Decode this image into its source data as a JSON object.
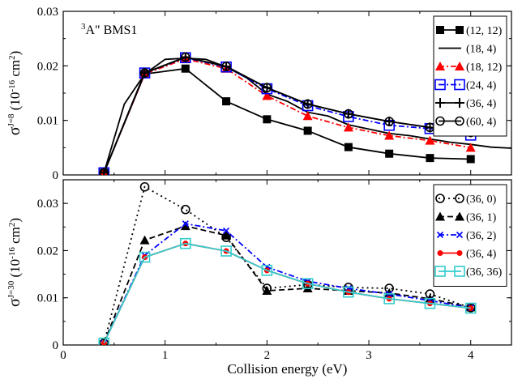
{
  "chart_data": [
    {
      "type": "line",
      "title": "",
      "annotation": "3A\" BMS1",
      "annotation_sup": "3",
      "annotation_main": "A\" BMS1",
      "xlabel": "",
      "ylabel_sym": "σ",
      "ylabel_sup": "J=8",
      "ylabel_unit_pre": " (10",
      "ylabel_unit_exp": "-16",
      "ylabel_unit_mid": " cm",
      "ylabel_unit_sq": "2",
      "ylabel_unit_post": ")",
      "ylim": [
        0,
        0.03
      ],
      "xlim": [
        0,
        4.4
      ],
      "yticks": [
        0,
        0.01,
        0.02,
        0.03
      ],
      "yticklabels": [
        "0",
        "0.01",
        "0.02",
        "0.03"
      ],
      "legend_position": "top-right",
      "series": [
        {
          "name": "(12, 12)",
          "color": "#000000",
          "marker": "square-filled",
          "dash": "solid",
          "x": [
            0.4,
            0.8,
            1.2,
            1.6,
            2.0,
            2.4,
            2.8,
            3.2,
            3.6,
            4.0
          ],
          "y": [
            0.0004,
            0.0185,
            0.0195,
            0.0135,
            0.0102,
            0.0081,
            0.0051,
            0.0039,
            0.0031,
            0.0029
          ]
        },
        {
          "name": "(18, 4)",
          "color": "#000000",
          "marker": "none",
          "dash": "solid",
          "x": [
            0.4,
            0.6,
            0.8,
            1.0,
            1.2,
            1.4,
            1.6,
            1.8,
            2.0,
            2.2,
            2.4,
            2.6,
            2.8,
            3.0,
            3.2,
            3.4,
            3.6,
            3.8,
            4.0,
            4.2,
            4.4
          ],
          "y": [
            0.0004,
            0.013,
            0.0185,
            0.0212,
            0.0214,
            0.0212,
            0.0198,
            0.0178,
            0.0148,
            0.0135,
            0.0115,
            0.0108,
            0.0092,
            0.0084,
            0.0076,
            0.0072,
            0.0066,
            0.006,
            0.0056,
            0.0051,
            0.0049
          ]
        },
        {
          "name": "(18, 12)",
          "color": "#ff0000",
          "marker": "triangle-filled",
          "dash": "dashdot",
          "x": [
            0.4,
            0.8,
            1.2,
            1.6,
            2.0,
            2.4,
            2.8,
            3.2,
            3.6,
            4.0
          ],
          "y": [
            0.0004,
            0.0185,
            0.0213,
            0.0195,
            0.0145,
            0.0108,
            0.0087,
            0.0072,
            0.0063,
            0.005
          ]
        },
        {
          "name": "(24, 4)",
          "color": "#0000ff",
          "marker": "square-open",
          "dash": "dashdot",
          "x": [
            0.4,
            0.8,
            1.2,
            1.6,
            2.0,
            2.4,
            2.8,
            3.2,
            3.6,
            4.0
          ],
          "y": [
            0.0004,
            0.0187,
            0.0215,
            0.0198,
            0.0158,
            0.0127,
            0.0107,
            0.0091,
            0.0085,
            0.0073
          ]
        },
        {
          "name": "(36, 4)",
          "color": "#000000",
          "marker": "plus",
          "dash": "solid",
          "x": [
            0.4,
            0.8,
            1.2,
            1.6,
            2.0,
            2.4,
            2.8,
            3.2,
            3.6,
            4.0
          ],
          "y": [
            0.0004,
            0.0187,
            0.0216,
            0.0199,
            0.016,
            0.013,
            0.0112,
            0.0098,
            0.0087,
            0.0078
          ]
        },
        {
          "name": "(60, 4)",
          "color": "#000000",
          "marker": "circle-open",
          "dash": "solid",
          "x": [
            0.4,
            0.8,
            1.2,
            1.6,
            2.0,
            2.4,
            2.8,
            3.2,
            3.6,
            4.0
          ],
          "y": [
            0.0004,
            0.0187,
            0.0216,
            0.0199,
            0.016,
            0.013,
            0.0112,
            0.0098,
            0.0087,
            0.0078
          ]
        }
      ]
    },
    {
      "type": "line",
      "title": "",
      "xlabel": "Collision energy (eV)",
      "ylabel_sym": "σ",
      "ylabel_sup": "J=30",
      "ylabel_unit_pre": " (10",
      "ylabel_unit_exp": "-16",
      "ylabel_unit_mid": " cm",
      "ylabel_unit_sq": "2",
      "ylabel_unit_post": ")",
      "ylim": [
        0,
        0.035
      ],
      "xlim": [
        0,
        4.4
      ],
      "xticks": [
        0,
        1,
        2,
        3,
        4
      ],
      "xticklabels": [
        "0",
        "1",
        "2",
        "3",
        "4"
      ],
      "yticks": [
        0,
        0.01,
        0.02,
        0.03
      ],
      "yticklabels": [
        "0",
        "0.01",
        "0.02",
        "0.03"
      ],
      "legend_position": "top-right",
      "series": [
        {
          "name": "(36, 0)",
          "color": "#000000",
          "marker": "circle-open",
          "dash": "dotted",
          "x": [
            0.4,
            0.8,
            1.2,
            1.6,
            2.0,
            2.4,
            2.8,
            3.2,
            3.6,
            4.0
          ],
          "y": [
            0.0004,
            0.0335,
            0.0287,
            0.0228,
            0.012,
            0.0128,
            0.0122,
            0.012,
            0.0108,
            0.0079
          ]
        },
        {
          "name": "(36, 1)",
          "color": "#000000",
          "marker": "triangle-filled",
          "dash": "dashed",
          "x": [
            0.4,
            0.8,
            1.2,
            1.6,
            2.0,
            2.4,
            2.8,
            3.2,
            3.6,
            4.0
          ],
          "y": [
            0.0004,
            0.0222,
            0.0252,
            0.0232,
            0.0115,
            0.012,
            0.0115,
            0.011,
            0.0098,
            0.008
          ]
        },
        {
          "name": "(36, 2)",
          "color": "#0000ff",
          "marker": "x",
          "dash": "dashdot",
          "x": [
            0.4,
            0.8,
            1.2,
            1.6,
            2.0,
            2.4,
            2.8,
            3.2,
            3.6,
            4.0
          ],
          "y": [
            0.0004,
            0.019,
            0.0257,
            0.0242,
            0.0165,
            0.0135,
            0.012,
            0.0108,
            0.0094,
            0.0079
          ]
        },
        {
          "name": "(36, 4)",
          "color": "#ff0000",
          "marker": "circle-filled",
          "dash": "solid",
          "x": [
            0.4,
            0.8,
            1.2,
            1.6,
            2.0,
            2.4,
            2.8,
            3.2,
            3.6,
            4.0
          ],
          "y": [
            0.0004,
            0.0186,
            0.0215,
            0.0199,
            0.0158,
            0.013,
            0.0112,
            0.0098,
            0.0088,
            0.0078
          ]
        },
        {
          "name": "(36, 36)",
          "color": "#33cccc",
          "marker": "square-open",
          "dash": "solid",
          "x": [
            0.4,
            0.8,
            1.2,
            1.6,
            2.0,
            2.4,
            2.8,
            3.2,
            3.6,
            4.0
          ],
          "y": [
            0.0004,
            0.0186,
            0.0215,
            0.0199,
            0.0158,
            0.013,
            0.0112,
            0.0098,
            0.0088,
            0.0078
          ]
        }
      ]
    }
  ]
}
